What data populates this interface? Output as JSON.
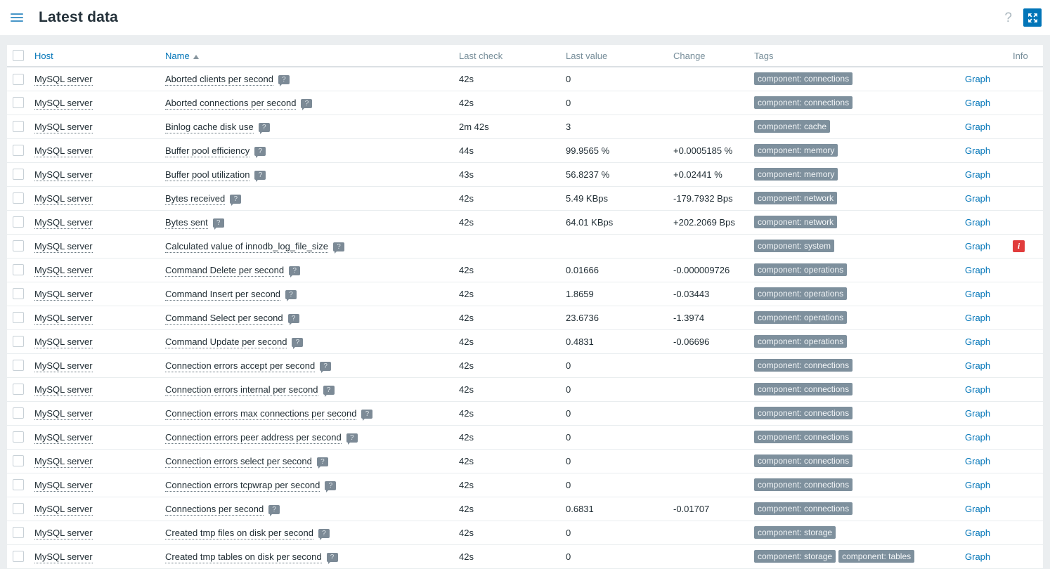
{
  "header": {
    "title": "Latest data",
    "help_label": "?"
  },
  "table": {
    "columns": {
      "host": "Host",
      "name": "Name",
      "last_check": "Last check",
      "last_value": "Last value",
      "change": "Change",
      "tags": "Tags",
      "info": "Info"
    },
    "sort": {
      "column": "Name",
      "direction": "asc"
    },
    "graph_label": "Graph",
    "info_badge_label": "i",
    "rows": [
      {
        "host": "MySQL server",
        "name": "Aborted clients per second",
        "last_check": "42s",
        "last_value": "0",
        "change": "",
        "tags": [
          "component: connections"
        ],
        "info": false
      },
      {
        "host": "MySQL server",
        "name": "Aborted connections per second",
        "last_check": "42s",
        "last_value": "0",
        "change": "",
        "tags": [
          "component: connections"
        ],
        "info": false
      },
      {
        "host": "MySQL server",
        "name": "Binlog cache disk use",
        "last_check": "2m 42s",
        "last_value": "3",
        "change": "",
        "tags": [
          "component: cache"
        ],
        "info": false
      },
      {
        "host": "MySQL server",
        "name": "Buffer pool efficiency",
        "last_check": "44s",
        "last_value": "99.9565 %",
        "change": "+0.0005185 %",
        "tags": [
          "component: memory"
        ],
        "info": false
      },
      {
        "host": "MySQL server",
        "name": "Buffer pool utilization",
        "last_check": "43s",
        "last_value": "56.8237 %",
        "change": "+0.02441 %",
        "tags": [
          "component: memory"
        ],
        "info": false
      },
      {
        "host": "MySQL server",
        "name": "Bytes received",
        "last_check": "42s",
        "last_value": "5.49 KBps",
        "change": "-179.7932 Bps",
        "tags": [
          "component: network"
        ],
        "info": false
      },
      {
        "host": "MySQL server",
        "name": "Bytes sent",
        "last_check": "42s",
        "last_value": "64.01 KBps",
        "change": "+202.2069 Bps",
        "tags": [
          "component: network"
        ],
        "info": false
      },
      {
        "host": "MySQL server",
        "name": "Calculated value of innodb_log_file_size",
        "last_check": "",
        "last_value": "",
        "change": "",
        "tags": [
          "component: system"
        ],
        "info": true
      },
      {
        "host": "MySQL server",
        "name": "Command Delete per second",
        "last_check": "42s",
        "last_value": "0.01666",
        "change": "-0.000009726",
        "tags": [
          "component: operations"
        ],
        "info": false
      },
      {
        "host": "MySQL server",
        "name": "Command Insert per second",
        "last_check": "42s",
        "last_value": "1.8659",
        "change": "-0.03443",
        "tags": [
          "component: operations"
        ],
        "info": false
      },
      {
        "host": "MySQL server",
        "name": "Command Select per second",
        "last_check": "42s",
        "last_value": "23.6736",
        "change": "-1.3974",
        "tags": [
          "component: operations"
        ],
        "info": false
      },
      {
        "host": "MySQL server",
        "name": "Command Update per second",
        "last_check": "42s",
        "last_value": "0.4831",
        "change": "-0.06696",
        "tags": [
          "component: operations"
        ],
        "info": false
      },
      {
        "host": "MySQL server",
        "name": "Connection errors accept per second",
        "last_check": "42s",
        "last_value": "0",
        "change": "",
        "tags": [
          "component: connections"
        ],
        "info": false
      },
      {
        "host": "MySQL server",
        "name": "Connection errors internal per second",
        "last_check": "42s",
        "last_value": "0",
        "change": "",
        "tags": [
          "component: connections"
        ],
        "info": false
      },
      {
        "host": "MySQL server",
        "name": "Connection errors max connections per second",
        "last_check": "42s",
        "last_value": "0",
        "change": "",
        "tags": [
          "component: connections"
        ],
        "info": false
      },
      {
        "host": "MySQL server",
        "name": "Connection errors peer address per second",
        "last_check": "42s",
        "last_value": "0",
        "change": "",
        "tags": [
          "component: connections"
        ],
        "info": false
      },
      {
        "host": "MySQL server",
        "name": "Connection errors select per second",
        "last_check": "42s",
        "last_value": "0",
        "change": "",
        "tags": [
          "component: connections"
        ],
        "info": false
      },
      {
        "host": "MySQL server",
        "name": "Connection errors tcpwrap per second",
        "last_check": "42s",
        "last_value": "0",
        "change": "",
        "tags": [
          "component: connections"
        ],
        "info": false
      },
      {
        "host": "MySQL server",
        "name": "Connections per second",
        "last_check": "42s",
        "last_value": "0.6831",
        "change": "-0.01707",
        "tags": [
          "component: connections"
        ],
        "info": false
      },
      {
        "host": "MySQL server",
        "name": "Created tmp files on disk per second",
        "last_check": "42s",
        "last_value": "0",
        "change": "",
        "tags": [
          "component: storage"
        ],
        "info": false
      },
      {
        "host": "MySQL server",
        "name": "Created tmp tables on disk per second",
        "last_check": "42s",
        "last_value": "0",
        "change": "",
        "tags": [
          "component: storage",
          "component: tables"
        ],
        "info": false
      }
    ]
  },
  "colors": {
    "accent_blue": "#0275b8",
    "tag_bg": "#7e909d",
    "info_red": "#e13c3c",
    "body_bg": "#ebeef0",
    "header_text": "#768d99"
  }
}
